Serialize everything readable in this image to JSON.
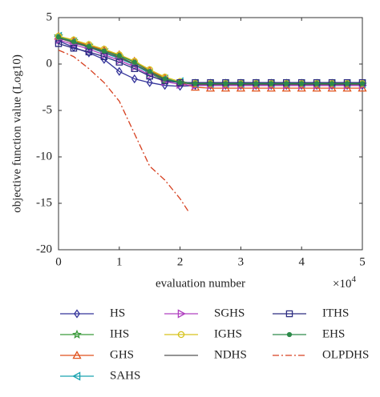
{
  "chart_data": {
    "type": "line",
    "x_label": "evaluation number",
    "y_label": "objective function value (Log10)",
    "x_scale_base": "×10",
    "x_scale_exponent": "4",
    "xlim": [
      0,
      5
    ],
    "xticks": [
      0,
      1,
      2,
      3,
      4,
      5
    ],
    "ylim": [
      -20,
      5
    ],
    "yticks": [
      -20,
      -15,
      -10,
      -5,
      0,
      5
    ],
    "grid": false,
    "x": [
      0,
      0.25,
      0.5,
      0.75,
      1,
      1.25,
      1.5,
      1.75,
      2,
      2.25,
      2.5,
      2.75,
      3,
      3.25,
      3.5,
      3.75,
      4,
      4.25,
      4.5,
      4.75,
      5
    ],
    "series": [
      {
        "name": "HS",
        "color": "#34349a",
        "marker": "diamond",
        "dash": "solid",
        "values": [
          2.5,
          1.8,
          1.2,
          0.5,
          -0.8,
          -1.6,
          -2.0,
          -2.3,
          -2.4,
          -2.3,
          -2.3,
          -2.3,
          -2.3,
          -2.3,
          -2.3,
          -2.3,
          -2.3,
          -2.3,
          -2.3,
          -2.3,
          -2.3
        ]
      },
      {
        "name": "IHS",
        "color": "#3a9a3a",
        "marker": "star",
        "dash": "solid",
        "values": [
          3.0,
          2.5,
          2.0,
          1.5,
          0.8,
          0.0,
          -1.0,
          -1.8,
          -2.0,
          -2.1,
          -2.1,
          -2.1,
          -2.1,
          -2.1,
          -2.1,
          -2.1,
          -2.1,
          -2.1,
          -2.1,
          -2.2,
          -2.2
        ]
      },
      {
        "name": "GHS",
        "color": "#e0521c",
        "marker": "triangle",
        "dash": "solid",
        "values": [
          3.0,
          2.5,
          2.0,
          1.5,
          1.0,
          0.3,
          -0.7,
          -1.5,
          -2.0,
          -2.5,
          -2.6,
          -2.6,
          -2.6,
          -2.6,
          -2.6,
          -2.6,
          -2.6,
          -2.6,
          -2.6,
          -2.6,
          -2.6
        ]
      },
      {
        "name": "SAHS",
        "color": "#1aa3b0",
        "marker": "triangle-left",
        "dash": "solid",
        "values": [
          3.0,
          2.4,
          1.8,
          1.2,
          0.6,
          -0.1,
          -1.0,
          -1.6,
          -1.9,
          -2.1,
          -2.1,
          -2.1,
          -2.1,
          -2.1,
          -2.1,
          -2.1,
          -2.1,
          -2.1,
          -2.1,
          -2.1,
          -2.1
        ]
      },
      {
        "name": "SGHS",
        "color": "#b040c0",
        "marker": "triangle-right",
        "dash": "solid",
        "values": [
          2.6,
          2.1,
          1.6,
          1.0,
          0.4,
          -0.3,
          -1.2,
          -1.9,
          -2.2,
          -2.3,
          -2.3,
          -2.3,
          -2.3,
          -2.3,
          -2.3,
          -2.3,
          -2.3,
          -2.3,
          -2.3,
          -2.3,
          -2.3
        ]
      },
      {
        "name": "IGHS",
        "color": "#d6c21c",
        "marker": "circle",
        "dash": "solid",
        "values": [
          3.0,
          2.6,
          2.1,
          1.6,
          1.0,
          0.3,
          -0.6,
          -1.4,
          -1.9,
          -2.1,
          -2.1,
          -2.1,
          -2.1,
          -2.1,
          -2.1,
          -2.1,
          -2.1,
          -2.1,
          -2.1,
          -2.1,
          -2.1
        ]
      },
      {
        "name": "NDHS",
        "color": "#555555",
        "marker": "none",
        "dash": "solid",
        "values": [
          2.8,
          2.3,
          1.8,
          1.3,
          0.7,
          0.0,
          -0.9,
          -1.7,
          -2.0,
          -2.2,
          -2.2,
          -2.2,
          -2.2,
          -2.2,
          -2.2,
          -2.2,
          -2.2,
          -2.2,
          -2.2,
          -2.2,
          -2.2
        ]
      },
      {
        "name": "ITHS",
        "color": "#2c2c80",
        "marker": "square",
        "dash": "solid",
        "values": [
          2.2,
          1.7,
          1.3,
          0.8,
          0.2,
          -0.5,
          -1.3,
          -1.8,
          -2.0,
          -2.0,
          -2.0,
          -2.0,
          -2.0,
          -2.0,
          -2.0,
          -2.0,
          -2.0,
          -2.0,
          -2.0,
          -2.0,
          -2.0
        ]
      },
      {
        "name": "EHS",
        "color": "#2d8a4a",
        "marker": "dot",
        "dash": "solid",
        "values": [
          2.9,
          2.4,
          1.9,
          1.4,
          0.9,
          0.2,
          -0.8,
          -1.6,
          -2.0,
          -2.1,
          -2.1,
          -2.1,
          -2.1,
          -2.1,
          -2.1,
          -2.1,
          -2.1,
          -2.1,
          -2.1,
          -2.1,
          -2.1
        ]
      },
      {
        "name": "OLPDHS",
        "color": "#d64020",
        "marker": "none",
        "dash": "dashdot",
        "x": [
          0,
          0.25,
          0.5,
          0.75,
          1,
          1.25,
          1.5,
          1.75,
          2,
          2.15
        ],
        "values": [
          1.5,
          0.8,
          -0.5,
          -2.0,
          -4.0,
          -7.5,
          -11.0,
          -12.5,
          -14.5,
          -16.0
        ]
      }
    ]
  }
}
